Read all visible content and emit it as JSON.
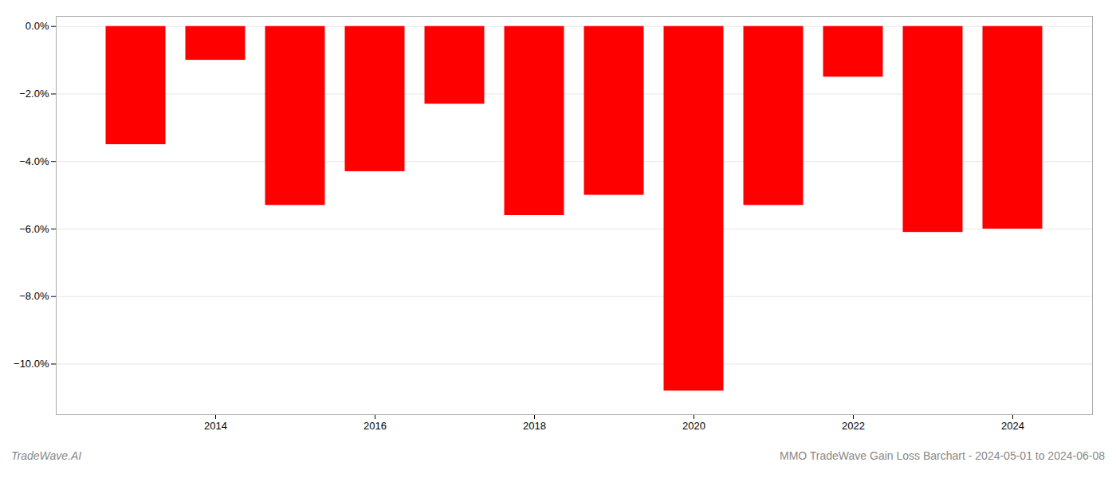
{
  "chart_data": {
    "type": "bar",
    "x": [
      2013,
      2014,
      2015,
      2016,
      2017,
      2018,
      2019,
      2020,
      2021,
      2022,
      2023,
      2024
    ],
    "values": [
      -3.5,
      -1.0,
      -5.3,
      -4.3,
      -2.3,
      -5.6,
      -5.0,
      -10.8,
      -5.3,
      -1.5,
      -6.1,
      -6.0
    ],
    "color": "#ff0000",
    "xlim": [
      2012,
      2025
    ],
    "xticks": [
      2014,
      2016,
      2018,
      2020,
      2022,
      2024
    ],
    "ylim": [
      -11.5,
      0.3
    ],
    "yticks": [
      {
        "value": 0.0,
        "label": "0.0%"
      },
      {
        "value": -2.0,
        "label": "−2.0%"
      },
      {
        "value": -4.0,
        "label": "−4.0%"
      },
      {
        "value": -6.0,
        "label": "−6.0%"
      },
      {
        "value": -8.0,
        "label": "−8.0%"
      },
      {
        "value": -10.0,
        "label": "−10.0%"
      }
    ],
    "grid": true,
    "annotations": [
      "TradeWave.AI",
      "MMO TradeWave Gain Loss Barchart - 2024-05-01 to 2024-06-08"
    ]
  }
}
